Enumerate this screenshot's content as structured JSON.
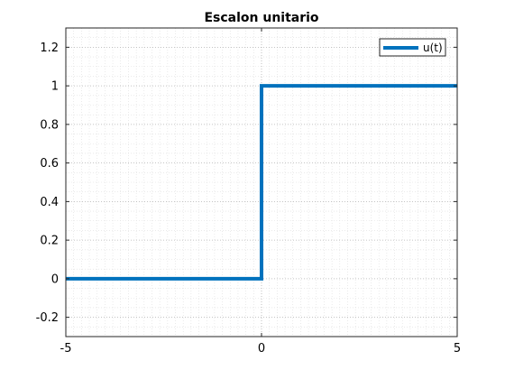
{
  "chart_data": {
    "type": "line",
    "title": "Escalon unitario",
    "xlabel": "",
    "ylabel": "",
    "xlim": [
      -5,
      5
    ],
    "ylim": [
      -0.3,
      1.3
    ],
    "x_ticks": [
      -5,
      0,
      5
    ],
    "x_tick_labels": [
      "-5",
      "0",
      "5"
    ],
    "y_ticks": [
      -0.2,
      0,
      0.2,
      0.4,
      0.6,
      0.8,
      1,
      1.2
    ],
    "y_tick_labels": [
      "-0.2",
      "0",
      "0.2",
      "0.4",
      "0.6",
      "0.8",
      "1",
      "1.2"
    ],
    "grid": true,
    "minor_grid": true,
    "legend_position": "top-right",
    "series": [
      {
        "name": "u(t)",
        "color": "#0072BD",
        "x": [
          -5,
          0,
          0,
          5
        ],
        "y": [
          0,
          0,
          1,
          1
        ]
      }
    ]
  }
}
